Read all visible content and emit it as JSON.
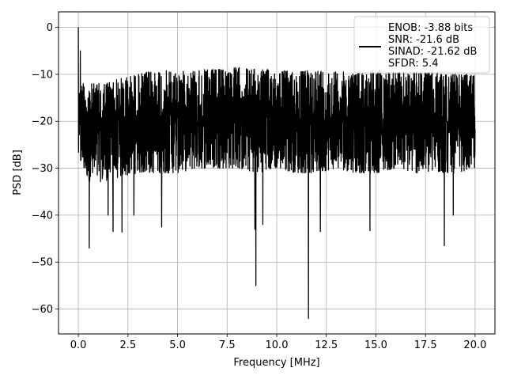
{
  "chart_data": {
    "type": "line",
    "title": "",
    "xlabel": "Frequency [MHz]",
    "ylabel": "PSD [dB]",
    "xlim": [
      -1.0,
      21.0
    ],
    "ylim": [
      -65.3,
      3.3
    ],
    "xticks": [
      0.0,
      2.5,
      5.0,
      7.5,
      10.0,
      12.5,
      15.0,
      17.5,
      20.0
    ],
    "xtick_labels": [
      "0.0",
      "2.5",
      "5.0",
      "7.5",
      "10.0",
      "12.5",
      "15.0",
      "17.5",
      "20.0"
    ],
    "yticks": [
      0,
      -10,
      -20,
      -30,
      -40,
      -50,
      -60
    ],
    "ytick_labels": [
      "0",
      "−10",
      "−20",
      "−30",
      "−40",
      "−50",
      "−60"
    ],
    "grid": true,
    "legend": {
      "placement": "top-right",
      "lines": [
        "ENOB: -3.88 bits",
        "SNR: -21.6 dB",
        "SINAD: -21.62 dB",
        "SFDR: 5.4"
      ]
    },
    "series": [
      {
        "color": "#000000",
        "noise_envelope": {
          "x": [
            0.0,
            0.2,
            0.6,
            1.0,
            2.0,
            3.0,
            4.0,
            5.0,
            6.0,
            7.0,
            8.0,
            9.0,
            10.0,
            11.0,
            12.0,
            13.0,
            14.0,
            15.0,
            16.0,
            17.0,
            18.0,
            19.0,
            20.0
          ],
          "upper": [
            -14,
            -12,
            -12,
            -12,
            -11,
            -10,
            -9,
            -9.5,
            -9,
            -9,
            -8.5,
            -9,
            -9,
            -9.5,
            -9,
            -9.5,
            -9.5,
            -9,
            -9.5,
            -9.5,
            -9.5,
            -10,
            -10
          ],
          "lower": [
            -28,
            -30,
            -33,
            -33,
            -32,
            -31,
            -31,
            -31,
            -30,
            -30,
            -30,
            -31,
            -30,
            -31,
            -31,
            -30,
            -31,
            -31,
            -30,
            -31,
            -31,
            -31,
            -30
          ]
        },
        "peaks": [
          {
            "x": 0.0,
            "y": 0.0
          },
          {
            "x": 0.04,
            "y": -18.0
          },
          {
            "x": 0.1,
            "y": -5.0
          },
          {
            "x": 0.25,
            "y": -12.0
          }
        ],
        "dips": [
          {
            "x": 0.55,
            "y": -47.0
          },
          {
            "x": 1.5,
            "y": -40.0
          },
          {
            "x": 1.75,
            "y": -43.5
          },
          {
            "x": 2.2,
            "y": -43.6
          },
          {
            "x": 2.8,
            "y": -40.0
          },
          {
            "x": 4.2,
            "y": -42.5
          },
          {
            "x": 8.9,
            "y": -43.0
          },
          {
            "x": 8.95,
            "y": -55.0
          },
          {
            "x": 9.3,
            "y": -42.0
          },
          {
            "x": 11.6,
            "y": -62.0
          },
          {
            "x": 12.2,
            "y": -43.5
          },
          {
            "x": 14.7,
            "y": -43.3
          },
          {
            "x": 18.45,
            "y": -46.5
          },
          {
            "x": 18.9,
            "y": -40.0
          }
        ]
      }
    ]
  }
}
